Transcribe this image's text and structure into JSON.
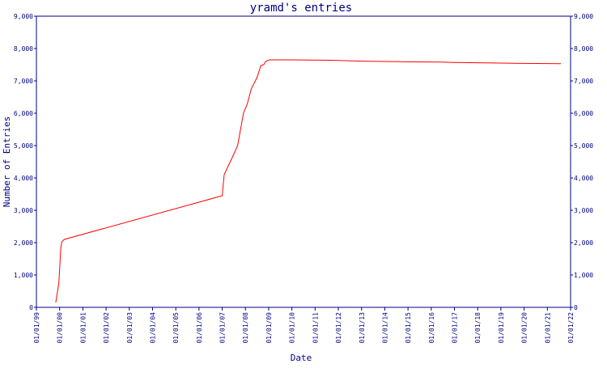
{
  "chart_data": {
    "type": "line",
    "title": "yramd's entries",
    "xlabel": "Date",
    "ylabel": "Number of Entries",
    "ylim": [
      0,
      9000
    ],
    "y_ticks": [
      0,
      1000,
      2000,
      3000,
      4000,
      5000,
      6000,
      7000,
      8000,
      9000
    ],
    "y_tick_labels": [
      "0",
      "1,000",
      "2,000",
      "3,000",
      "4,000",
      "5,000",
      "6,000",
      "7,000",
      "8,000",
      "9,000"
    ],
    "x_tick_labels": [
      "01/01/99",
      "01/01/00",
      "01/01/01",
      "01/01/02",
      "01/01/03",
      "01/01/04",
      "01/01/05",
      "01/01/06",
      "01/01/07",
      "01/01/08",
      "01/01/09",
      "01/01/10",
      "01/01/11",
      "01/01/12",
      "01/01/13",
      "01/01/14",
      "01/01/15",
      "01/01/16",
      "01/01/17",
      "01/01/18",
      "01/01/19",
      "01/01/20",
      "01/01/21",
      "01/01/22"
    ],
    "series": [
      {
        "line_color": "#ff0000",
        "x": [
          "1999-11-01",
          "1999-12-20",
          "2000-01-10",
          "2000-01-20",
          "2000-02-01",
          "2000-02-15",
          "2000-03-15",
          "2007-01-01",
          "2007-02-01",
          "2007-04-01",
          "2007-06-01",
          "2007-09-01",
          "2007-12-01",
          "2008-02-01",
          "2008-04-01",
          "2008-07-01",
          "2008-09-01",
          "2008-10-15",
          "2008-11-15",
          "2008-12-15",
          "2009-01-15",
          "2009-03-01",
          "2010-01-01",
          "2011-06-01",
          "2012-01-01",
          "2013-01-01",
          "2014-01-01",
          "2015-01-01",
          "2016-06-01",
          "2017-01-01",
          "2018-01-01",
          "2019-01-01",
          "2020-01-01",
          "2021-08-01"
        ],
        "y": [
          150,
          750,
          1500,
          1850,
          2000,
          2050,
          2100,
          3450,
          4100,
          4350,
          4600,
          5000,
          6000,
          6300,
          6750,
          7100,
          7480,
          7500,
          7600,
          7630,
          7650,
          7650,
          7650,
          7640,
          7630,
          7610,
          7600,
          7590,
          7580,
          7570,
          7560,
          7550,
          7540,
          7530
        ]
      }
    ],
    "grid": false,
    "legend": "none"
  }
}
